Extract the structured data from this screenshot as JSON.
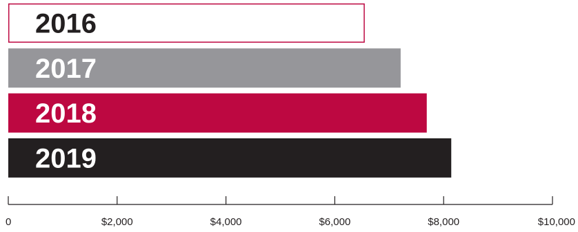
{
  "chart_data": {
    "type": "bar",
    "orientation": "horizontal",
    "categories": [
      "2016",
      "2017",
      "2018",
      "2019"
    ],
    "values": [
      6550,
      7210,
      7690,
      8140
    ],
    "xlim": [
      0,
      10000
    ],
    "xticks": [
      0,
      2000,
      4000,
      6000,
      8000,
      10000
    ],
    "xtick_labels": [
      "0",
      "$2,000",
      "$4,000",
      "$6,000",
      "$8,000",
      "$10,000"
    ],
    "grid": false,
    "legend": "none",
    "bar_styles": [
      {
        "fill": "#ffffff",
        "stroke": "#bd0841",
        "label_color": "#231f20"
      },
      {
        "fill": "#96969a",
        "stroke": "none",
        "label_color": "#ffffff"
      },
      {
        "fill": "#bd0841",
        "stroke": "none",
        "label_color": "#ffffff"
      },
      {
        "fill": "#231f20",
        "stroke": "none",
        "label_color": "#ffffff"
      }
    ],
    "axis_color": "#231f20"
  }
}
